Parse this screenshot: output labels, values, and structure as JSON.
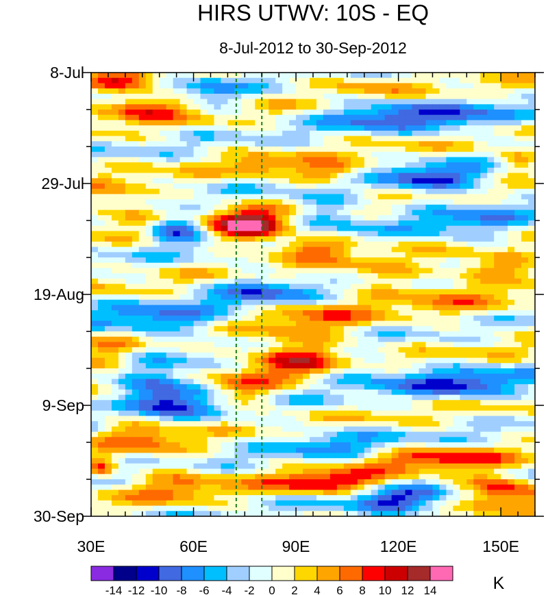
{
  "chart_data": {
    "type": "heatmap",
    "title": "HIRS UTWV: 10S - EQ",
    "subtitle": "8-Jul-2012 to 30-Sep-2012",
    "x_axis": {
      "range": [
        30,
        160
      ],
      "ticks": [
        30,
        60,
        90,
        120,
        150
      ],
      "tick_labels": [
        "30E",
        "60E",
        "90E",
        "120E",
        "150E"
      ]
    },
    "y_axis": {
      "range_days": [
        0,
        84
      ],
      "ticks": [
        0,
        21,
        42,
        63,
        84
      ],
      "tick_labels": [
        "8-Jul",
        "29-Jul",
        "19-Aug",
        "9-Sep",
        "30-Sep"
      ]
    },
    "reference_lines_lon": [
      72.5,
      80
    ],
    "colorbar": {
      "unit": "K",
      "levels": [
        -14,
        -12,
        -10,
        -8,
        -6,
        -4,
        -2,
        0,
        2,
        4,
        6,
        8,
        10,
        12,
        14
      ],
      "level_labels": [
        "-14",
        "-12",
        "-10",
        "-8",
        "-6",
        "-4",
        "-2",
        "0",
        "2",
        "4",
        "6",
        "8",
        "10",
        "12",
        "14"
      ],
      "colors": [
        "#8a2be2",
        "#00008b",
        "#0000cd",
        "#4169e1",
        "#1e90ff",
        "#00bfff",
        "#a0cfff",
        "#e0ffff",
        "#ffffcc",
        "#ffd700",
        "#ffa500",
        "#ff6a00",
        "#ff0000",
        "#cc0000",
        "#a52a2a",
        "#ff69b4"
      ]
    },
    "anomaly_features": [
      {
        "lon": 40,
        "day": 1.5,
        "value": 8,
        "sx": 7,
        "sy": 1.5
      },
      {
        "lon": 45,
        "day": 6.5,
        "value": 9,
        "sx": 9,
        "sy": 1.8
      },
      {
        "lon": 65,
        "day": 4,
        "value": -5,
        "sx": 6,
        "sy": 2
      },
      {
        "lon": 115,
        "day": 8,
        "value": -8,
        "sx": 12,
        "sy": 2
      },
      {
        "lon": 140,
        "day": 8.5,
        "value": -6,
        "sx": 10,
        "sy": 2
      },
      {
        "lon": 108,
        "day": 2,
        "value": 4,
        "sx": 10,
        "sy": 1.5
      },
      {
        "lon": 100,
        "day": 19,
        "value": 8,
        "sx": 8,
        "sy": 1.5
      },
      {
        "lon": 80,
        "day": 17.5,
        "value": 6,
        "sx": 6,
        "sy": 1.2
      },
      {
        "lon": 130,
        "day": 20,
        "value": -9,
        "sx": 12,
        "sy": 1.8
      },
      {
        "lon": 155,
        "day": 17,
        "value": 6,
        "sx": 5,
        "sy": 1.5
      },
      {
        "lon": 76,
        "day": 29,
        "value": 14,
        "sx": 8,
        "sy": 2.2
      },
      {
        "lon": 55,
        "day": 29.5,
        "value": -11,
        "sx": 6,
        "sy": 1.8
      },
      {
        "lon": 40,
        "day": 25,
        "value": 6,
        "sx": 8,
        "sy": 2.5
      },
      {
        "lon": 100,
        "day": 26,
        "value": -6,
        "sx": 8,
        "sy": 2.5
      },
      {
        "lon": 140,
        "day": 28,
        "value": -5,
        "sx": 12,
        "sy": 3
      },
      {
        "lon": 95,
        "day": 33,
        "value": 8,
        "sx": 8,
        "sy": 1.5
      },
      {
        "lon": 150,
        "day": 37,
        "value": 8,
        "sx": 10,
        "sy": 1.5
      },
      {
        "lon": 115,
        "day": 39,
        "value": 4,
        "sx": 10,
        "sy": 2
      },
      {
        "lon": 80,
        "day": 41.5,
        "value": -7,
        "sx": 10,
        "sy": 2
      },
      {
        "lon": 50,
        "day": 47,
        "value": -8,
        "sx": 14,
        "sy": 2
      },
      {
        "lon": 95,
        "day": 47,
        "value": 5,
        "sx": 12,
        "sy": 2.5
      },
      {
        "lon": 135,
        "day": 43,
        "value": 3,
        "sx": 14,
        "sy": 3
      },
      {
        "lon": 90,
        "day": 54,
        "value": 10,
        "sx": 10,
        "sy": 2.5
      },
      {
        "lon": 50,
        "day": 61,
        "value": -13,
        "sx": 9,
        "sy": 3
      },
      {
        "lon": 75,
        "day": 60,
        "value": 6,
        "sx": 6,
        "sy": 2
      },
      {
        "lon": 140,
        "day": 59,
        "value": -9,
        "sx": 12,
        "sy": 2
      },
      {
        "lon": 110,
        "day": 57,
        "value": -5,
        "sx": 10,
        "sy": 2
      },
      {
        "lon": 45,
        "day": 68,
        "value": 7,
        "sx": 8,
        "sy": 2.5
      },
      {
        "lon": 100,
        "day": 70,
        "value": -5,
        "sx": 14,
        "sy": 2
      },
      {
        "lon": 130,
        "day": 73,
        "value": 8,
        "sx": 14,
        "sy": 1.5
      },
      {
        "lon": 100,
        "day": 77.5,
        "value": 10,
        "sx": 12,
        "sy": 1.5
      },
      {
        "lon": 120,
        "day": 81,
        "value": -9,
        "sx": 10,
        "sy": 2
      },
      {
        "lon": 150,
        "day": 79,
        "value": 11,
        "sx": 8,
        "sy": 2
      },
      {
        "lon": 55,
        "day": 78,
        "value": 5,
        "sx": 10,
        "sy": 2.5
      },
      {
        "lon": 33,
        "day": 75,
        "value": 8,
        "sx": 3,
        "sy": 1.5
      },
      {
        "lon": 35,
        "day": 55,
        "value": 5,
        "sx": 6,
        "sy": 3
      }
    ]
  }
}
